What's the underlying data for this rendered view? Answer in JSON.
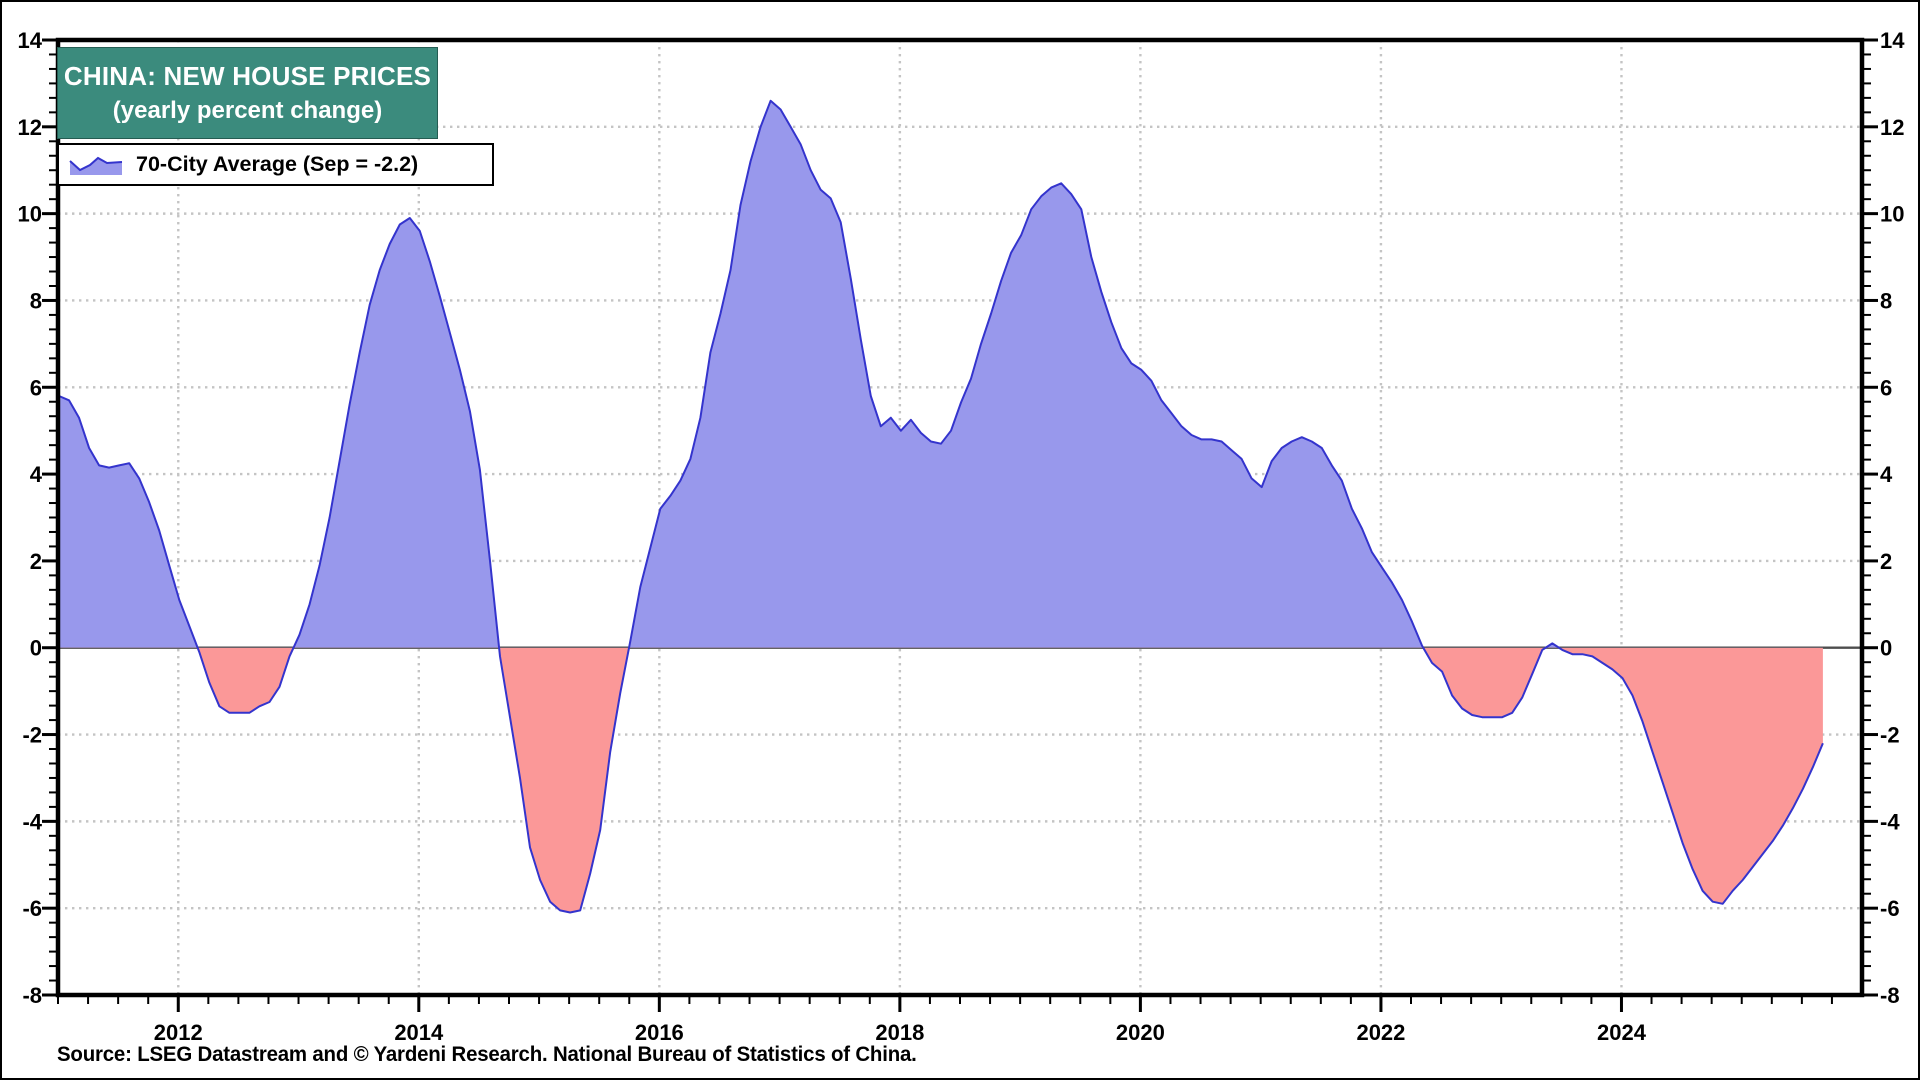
{
  "title_box": {
    "line1": "CHINA: NEW HOUSE PRICES",
    "line2": "(yearly percent change)",
    "bg": "#3B8B7D",
    "text_color": "#FFFFFF"
  },
  "legend": {
    "label": "70-City Average (Sep = -2.2)",
    "icon": "area-series-icon"
  },
  "source": "Source: LSEG Datastream and © Yardeni Research. National Bureau of Statistics of China.",
  "chart_data": {
    "type": "area",
    "title": "CHINA: NEW HOUSE PRICES",
    "subtitle": "(yearly percent change)",
    "series_name": "70-City Average",
    "latest_point_label": "Sep = -2.2",
    "frequency": "monthly",
    "x_start": "2011-01",
    "x_end": "2025-09",
    "ylim": [
      -8,
      14
    ],
    "y_tick_step": 2,
    "x_tick_years": [
      2012,
      2014,
      2016,
      2018,
      2020,
      2022,
      2024
    ],
    "grid": "dotted, at even values and even years, solid zero line",
    "legend_position": "top-left",
    "colors": {
      "positive_fill": "#9898EC",
      "negative_fill": "#FB9898",
      "line": "#3434CD",
      "grid": "#C4C4C4",
      "zero_line": "#4D4D4D",
      "frame": "#000000",
      "title_bg": "#3B8B7D"
    },
    "values_by_year": {
      "2011": [
        5.8,
        5.7,
        5.3,
        4.6,
        4.2,
        4.15,
        4.2,
        4.25,
        3.9,
        3.35,
        2.7,
        1.9
      ],
      "2012": [
        1.1,
        0.5,
        -0.1,
        -0.8,
        -1.35,
        -1.5,
        -1.5,
        -1.5,
        -1.35,
        -1.25,
        -0.9,
        -0.2
      ],
      "2013": [
        0.3,
        1.0,
        1.9,
        3.0,
        4.3,
        5.6,
        6.8,
        7.9,
        8.7,
        9.3,
        9.75,
        9.9
      ],
      "2014": [
        9.6,
        8.9,
        8.1,
        7.25,
        6.4,
        5.45,
        4.1,
        2.0,
        -0.2,
        -1.6,
        -3.0,
        -4.6
      ],
      "2015": [
        -5.35,
        -5.85,
        -6.05,
        -6.1,
        -6.05,
        -5.2,
        -4.2,
        -2.4,
        -1.05,
        0.15,
        1.4,
        2.3
      ],
      "2016": [
        3.2,
        3.5,
        3.85,
        4.35,
        5.3,
        6.8,
        7.7,
        8.7,
        10.2,
        11.2,
        12.0,
        12.6
      ],
      "2017": [
        12.4,
        12.0,
        11.6,
        11.0,
        10.55,
        10.35,
        9.8,
        8.5,
        7.1,
        5.8,
        5.1,
        5.3
      ],
      "2018": [
        5.0,
        5.25,
        4.95,
        4.75,
        4.7,
        5.0,
        5.65,
        6.2,
        7.0,
        7.7,
        8.45,
        9.1
      ],
      "2019": [
        9.5,
        10.1,
        10.4,
        10.6,
        10.7,
        10.45,
        10.1,
        9.0,
        8.2,
        7.5,
        6.9,
        6.55
      ],
      "2020": [
        6.4,
        6.15,
        5.7,
        5.4,
        5.1,
        4.9,
        4.8,
        4.8,
        4.75,
        4.55,
        4.35,
        3.9
      ],
      "2021": [
        3.7,
        4.3,
        4.6,
        4.75,
        4.85,
        4.75,
        4.6,
        4.2,
        3.85,
        3.2,
        2.75,
        2.2
      ],
      "2022": [
        1.85,
        1.5,
        1.1,
        0.6,
        0.05,
        -0.35,
        -0.55,
        -1.1,
        -1.4,
        -1.55,
        -1.6,
        -1.6
      ],
      "2023": [
        -1.6,
        -1.5,
        -1.15,
        -0.6,
        -0.05,
        0.1,
        -0.05,
        -0.15,
        -0.15,
        -0.2,
        -0.35,
        -0.5
      ],
      "2024": [
        -0.7,
        -1.1,
        -1.7,
        -2.4,
        -3.1,
        -3.8,
        -4.5,
        -5.1,
        -5.6,
        -5.85,
        -5.9,
        -5.6
      ],
      "2025": [
        -5.35,
        -5.05,
        -4.75,
        -4.45,
        -4.1,
        -3.7,
        -3.25,
        -2.75,
        -2.2
      ]
    }
  }
}
